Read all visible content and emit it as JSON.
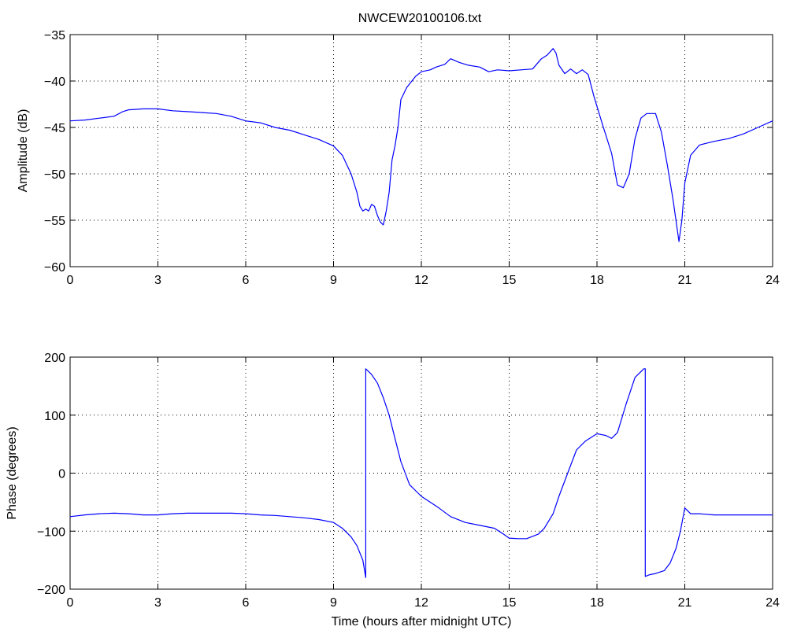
{
  "figure_title": "NWCEW20100106.txt",
  "chart_data": [
    {
      "type": "line",
      "title": "NWCEW20100106.txt",
      "xlabel": "",
      "ylabel": "Amplitude (dB)",
      "xlim": [
        0,
        24
      ],
      "ylim": [
        -60,
        -35
      ],
      "xticks": [
        0,
        3,
        6,
        9,
        12,
        15,
        18,
        21,
        24
      ],
      "yticks": [
        -60,
        -55,
        -50,
        -45,
        -40,
        -35
      ],
      "grid": true,
      "series_color": "#0000ff",
      "series": [
        {
          "x": [
            0,
            0.5,
            1,
            1.5,
            1.8,
            2,
            2.5,
            3,
            3.5,
            4,
            4.5,
            5,
            5.5,
            6,
            6.5,
            7,
            7.5,
            8,
            8.5,
            9,
            9.3,
            9.6,
            9.8,
            9.9,
            10,
            10.1,
            10.2,
            10.3,
            10.4,
            10.5,
            10.6,
            10.7,
            10.8,
            10.9,
            11,
            11.1,
            11.2,
            11.3,
            11.5,
            11.8,
            12,
            12.3,
            12.5,
            12.8,
            13,
            13.3,
            13.6,
            14,
            14.3,
            14.6,
            15,
            15.4,
            15.8,
            16.1,
            16.3,
            16.5,
            16.6,
            16.7,
            16.9,
            17.1,
            17.3,
            17.5,
            17.7,
            17.9,
            18.2,
            18.5,
            18.7,
            18.9,
            19.1,
            19.3,
            19.5,
            19.7,
            20,
            20.2,
            20.4,
            20.6,
            20.8,
            20.9,
            21,
            21.2,
            21.5,
            22,
            22.5,
            23,
            23.5,
            24
          ],
          "y": [
            -44.3,
            -44.2,
            -44,
            -43.8,
            -43.3,
            -43.1,
            -43,
            -43,
            -43.2,
            -43.3,
            -43.4,
            -43.5,
            -43.8,
            -44.3,
            -44.5,
            -45,
            -45.3,
            -45.8,
            -46.3,
            -47,
            -48,
            -50,
            -52,
            -53.5,
            -54,
            -53.8,
            -54,
            -53.3,
            -53.5,
            -54.5,
            -55.2,
            -55.5,
            -54,
            -52,
            -48.5,
            -47,
            -45,
            -42,
            -40.7,
            -39.5,
            -39,
            -38.8,
            -38.5,
            -38.2,
            -37.6,
            -38,
            -38.3,
            -38.5,
            -39,
            -38.8,
            -38.9,
            -38.8,
            -38.7,
            -37.6,
            -37.2,
            -36.5,
            -37,
            -38.3,
            -39.2,
            -38.7,
            -39.2,
            -38.8,
            -39.3,
            -41.7,
            -44.8,
            -47.8,
            -51.2,
            -51.5,
            -50,
            -46.2,
            -44,
            -43.5,
            -43.5,
            -45.5,
            -49,
            -52.8,
            -57.3,
            -55,
            -51,
            -48,
            -46.9,
            -46.5,
            -46.2,
            -45.7,
            -45,
            -44.3
          ]
        }
      ]
    },
    {
      "type": "line",
      "title": "",
      "xlabel": "Time (hours after midnight UTC)",
      "ylabel": "Phase (degrees)",
      "xlim": [
        0,
        24
      ],
      "ylim": [
        -200,
        200
      ],
      "xticks": [
        0,
        3,
        6,
        9,
        12,
        15,
        18,
        21,
        24
      ],
      "yticks": [
        -200,
        -100,
        0,
        100,
        200
      ],
      "grid": true,
      "series_color": "#0000ff",
      "series": [
        {
          "x": [
            0,
            0.5,
            1,
            1.5,
            2,
            2.5,
            3,
            3.5,
            4,
            4.5,
            5,
            5.5,
            6,
            6.5,
            7,
            7.5,
            8,
            8.5,
            9,
            9.3,
            9.6,
            9.8,
            10,
            10.1,
            10.1,
            10.3,
            10.5,
            10.7,
            10.9,
            11.1,
            11.3,
            11.6,
            12,
            12.3,
            12.6,
            13,
            13.5,
            14,
            14.5,
            14.8,
            15,
            15.3,
            15.6,
            16,
            16.2,
            16.5,
            16.7,
            17,
            17.3,
            17.6,
            18,
            18.3,
            18.5,
            18.7,
            19,
            19.3,
            19.6,
            19.65,
            19.65,
            19.8,
            20,
            20.3,
            20.5,
            20.7,
            20.85,
            21,
            21.2,
            21.5,
            22,
            22.5,
            23,
            23.5,
            24
          ],
          "y": [
            -75,
            -72,
            -70,
            -69,
            -70,
            -72,
            -72,
            -70,
            -69,
            -69,
            -69,
            -69,
            -70,
            -72,
            -73,
            -75,
            -77,
            -80,
            -85,
            -95,
            -110,
            -125,
            -150,
            -180,
            180,
            170,
            155,
            130,
            100,
            60,
            20,
            -20,
            -40,
            -50,
            -60,
            -75,
            -85,
            -90,
            -95,
            -105,
            -112,
            -113,
            -113,
            -105,
            -95,
            -70,
            -40,
            0,
            40,
            55,
            68,
            65,
            60,
            70,
            120,
            165,
            180,
            180,
            -178,
            -175,
            -173,
            -168,
            -155,
            -130,
            -100,
            -60,
            -70,
            -70,
            -72,
            -72,
            -72,
            -72,
            -72
          ]
        }
      ]
    }
  ]
}
